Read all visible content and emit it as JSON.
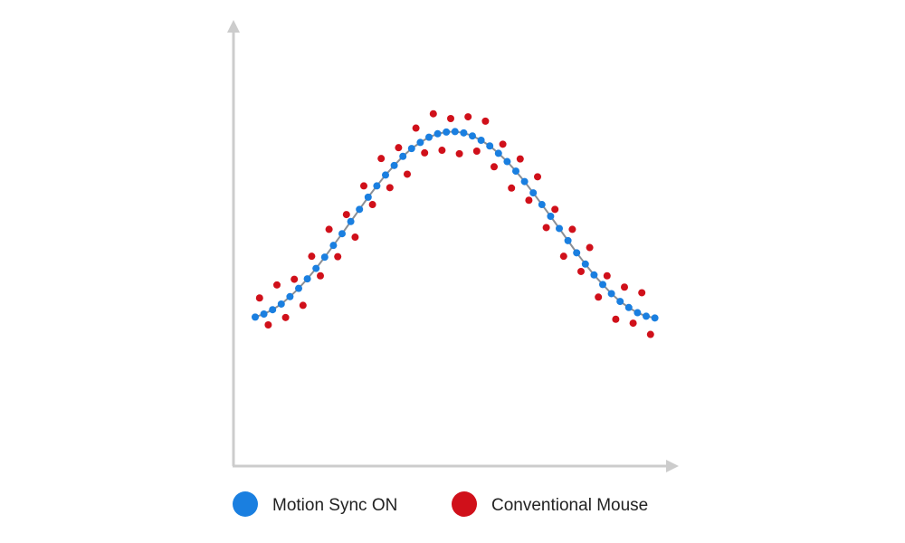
{
  "chart_data": {
    "type": "scatter",
    "title": "",
    "xlabel": "",
    "ylabel": "",
    "xlim": [
      0,
      100
    ],
    "ylim": [
      0,
      100
    ],
    "grid": false,
    "axis_ticks": false,
    "legend_placement": "bottom",
    "colors": {
      "axis": "#cccccc",
      "line": "#8a8f96"
    },
    "series": [
      {
        "name": "Motion Sync ON",
        "color": "#1a7fe0",
        "connected": true,
        "x": [
          5,
          7,
          9,
          11,
          13,
          15,
          17,
          19,
          21,
          23,
          25,
          27,
          29,
          31,
          33,
          35,
          37,
          39,
          41,
          43,
          45,
          47,
          49,
          51,
          53,
          55,
          57,
          59,
          61,
          63,
          65,
          67,
          69,
          71,
          73,
          75,
          77,
          79,
          81,
          83,
          85,
          87,
          89,
          91,
          93,
          95,
          97
        ],
        "y": [
          34.3,
          35.0,
          36.0,
          37.3,
          39.0,
          40.9,
          43.1,
          45.5,
          48.1,
          50.8,
          53.5,
          56.3,
          59.1,
          61.9,
          64.5,
          67.0,
          69.2,
          71.3,
          73.1,
          74.5,
          75.7,
          76.5,
          76.9,
          77.0,
          76.7,
          76.0,
          75.0,
          73.7,
          72.0,
          70.1,
          67.9,
          65.5,
          62.9,
          60.2,
          57.5,
          54.7,
          51.9,
          49.1,
          46.5,
          44.0,
          41.8,
          39.7,
          37.9,
          36.5,
          35.3,
          34.5,
          34.1
        ]
      },
      {
        "name": "Conventional Mouse",
        "color": "#d0101a",
        "connected": false,
        "x": [
          6,
          8,
          10,
          12,
          14,
          16,
          18,
          20,
          22,
          24,
          26,
          28,
          30,
          32,
          34,
          36,
          38,
          40,
          42,
          44,
          46,
          48,
          50,
          52,
          54,
          56,
          58,
          60,
          62,
          64,
          66,
          68,
          70,
          72,
          74,
          76,
          78,
          80,
          82,
          84,
          86,
          88,
          90,
          92,
          94,
          96
        ],
        "y": [
          38.7,
          32.5,
          41.7,
          34.2,
          43.0,
          37.0,
          48.3,
          43.8,
          54.5,
          48.2,
          57.9,
          52.7,
          64.5,
          60.2,
          70.8,
          64.1,
          73.3,
          67.2,
          77.8,
          72.1,
          81.1,
          72.7,
          80.0,
          71.9,
          80.4,
          72.5,
          79.4,
          68.9,
          74.1,
          64.0,
          70.7,
          61.2,
          66.6,
          54.9,
          59.1,
          48.3,
          54.5,
          44.8,
          50.3,
          38.9,
          43.8,
          33.8,
          41.2,
          32.9,
          39.9,
          30.3
        ]
      }
    ]
  },
  "legend": {
    "items": [
      {
        "label": "Motion Sync ON",
        "color": "#1a7fe0"
      },
      {
        "label": "Conventional Mouse",
        "color": "#d0101a"
      }
    ]
  }
}
